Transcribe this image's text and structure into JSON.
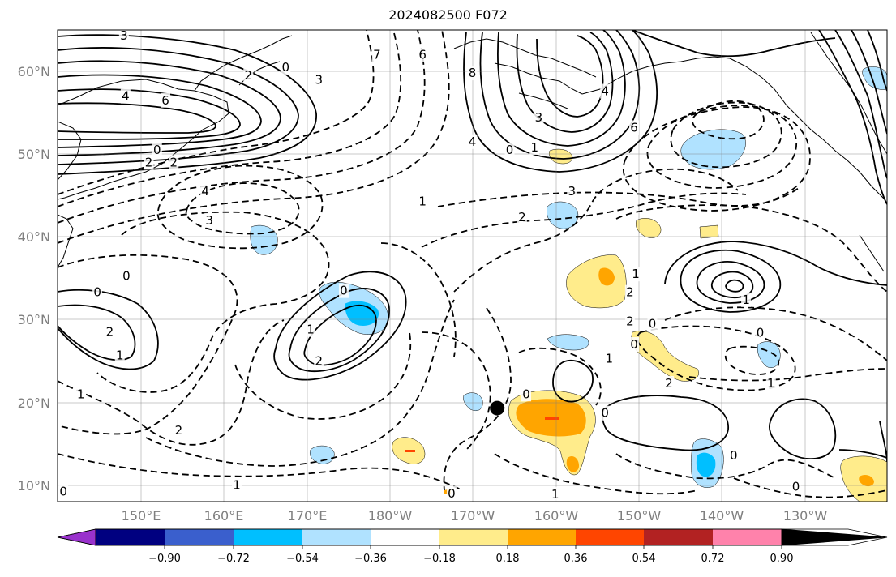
{
  "title": "2024082500 F072",
  "lat_labels": [
    "60°N",
    "50°N",
    "40°N",
    "30°N",
    "20°N",
    "10°N"
  ],
  "lon_labels": [
    "150°E",
    "160°E",
    "170°E",
    "180°W",
    "170°W",
    "160°W",
    "150°W",
    "140°W",
    "130°W"
  ],
  "colorbar": {
    "tick_labels": [
      "−0.90",
      "−0.72",
      "−0.54",
      "−0.36",
      "−0.18",
      "0.18",
      "0.36",
      "0.54",
      "0.72",
      "0.90"
    ],
    "colors": [
      "#9932cc",
      "#000080",
      "#3a5fcd",
      "#00bfff",
      "#b0e2ff",
      "#ffffff",
      "#ffec8b",
      "#ffa500",
      "#ff4500",
      "#b22222",
      "#ff82ab"
    ]
  },
  "marker": {
    "lat": 19.3,
    "lon": -167
  },
  "contour_labels": [
    {
      "text": "3",
      "lat": 64.3,
      "lon": 148.0
    },
    {
      "text": "4",
      "lat": 57.0,
      "lon": 148.2
    },
    {
      "text": "6",
      "lat": 56.5,
      "lon": 153.0
    },
    {
      "text": "0",
      "lat": 60.5,
      "lon": 167.5
    },
    {
      "text": "2",
      "lat": 59.5,
      "lon": 163.0
    },
    {
      "text": "3",
      "lat": 59.0,
      "lon": 171.5
    },
    {
      "text": "0",
      "lat": 50.5,
      "lon": 152.0
    },
    {
      "text": "2",
      "lat": 49.0,
      "lon": 151.0
    },
    {
      "text": "2",
      "lat": 49.0,
      "lon": 154.0
    },
    {
      "text": "4",
      "lat": 45.5,
      "lon": 157.8
    },
    {
      "text": "3",
      "lat": 42.0,
      "lon": 158.3
    },
    {
      "text": "0",
      "lat": 35.3,
      "lon": 148.3
    },
    {
      "text": "0",
      "lat": 33.3,
      "lon": 144.8
    },
    {
      "text": "2",
      "lat": 28.5,
      "lon": 146.3
    },
    {
      "text": "1",
      "lat": 25.7,
      "lon": 147.5
    },
    {
      "text": "1",
      "lat": 21.0,
      "lon": 142.8
    },
    {
      "text": "2",
      "lat": 16.6,
      "lon": 154.6
    },
    {
      "text": "0",
      "lat": 33.5,
      "lon": 174.5
    },
    {
      "text": "1",
      "lat": 28.8,
      "lon": 170.5
    },
    {
      "text": "2",
      "lat": 25.0,
      "lon": 171.5
    },
    {
      "text": "1",
      "lat": 10.0,
      "lon": 161.6
    },
    {
      "text": "7",
      "lat": 62.0,
      "lon": 178.5
    },
    {
      "text": "6",
      "lat": 62.0,
      "lon": -176.0
    },
    {
      "text": "8",
      "lat": 59.8,
      "lon": -170.0
    },
    {
      "text": "3",
      "lat": 54.4,
      "lon": -162.0
    },
    {
      "text": "4",
      "lat": 51.5,
      "lon": -170.0
    },
    {
      "text": "0",
      "lat": 50.5,
      "lon": -165.5
    },
    {
      "text": "1",
      "lat": 50.8,
      "lon": -162.5
    },
    {
      "text": "4",
      "lat": 57.6,
      "lon": -154.0
    },
    {
      "text": "6",
      "lat": 53.2,
      "lon": -150.5
    },
    {
      "text": "1",
      "lat": 44.3,
      "lon": -176.0
    },
    {
      "text": "3",
      "lat": 45.5,
      "lon": -158.0
    },
    {
      "text": "2",
      "lat": 42.4,
      "lon": -164.0
    },
    {
      "text": "1",
      "lat": 35.5,
      "lon": -150.3
    },
    {
      "text": "2",
      "lat": 33.3,
      "lon": -151.0
    },
    {
      "text": "2",
      "lat": 29.8,
      "lon": -151.0
    },
    {
      "text": "0",
      "lat": 29.5,
      "lon": -148.3
    },
    {
      "text": "1",
      "lat": 32.4,
      "lon": -137.0
    },
    {
      "text": "0",
      "lat": 28.4,
      "lon": -135.3
    },
    {
      "text": "0",
      "lat": 27.0,
      "lon": -150.5
    },
    {
      "text": "1",
      "lat": 25.3,
      "lon": -153.5
    },
    {
      "text": "2",
      "lat": 22.3,
      "lon": -146.3
    },
    {
      "text": "1",
      "lat": 22.3,
      "lon": -134.0
    },
    {
      "text": "0",
      "lat": 21.0,
      "lon": -163.5
    },
    {
      "text": "0",
      "lat": 18.7,
      "lon": -154.0
    },
    {
      "text": "0",
      "lat": 13.6,
      "lon": -138.5
    },
    {
      "text": "1",
      "lat": 8.9,
      "lon": -160.0
    },
    {
      "text": "0",
      "lat": 9.0,
      "lon": -172.5
    },
    {
      "text": "0",
      "lat": 9.2,
      "lon": 140.7
    },
    {
      "text": "0",
      "lat": 9.8,
      "lon": -131.0
    }
  ]
}
